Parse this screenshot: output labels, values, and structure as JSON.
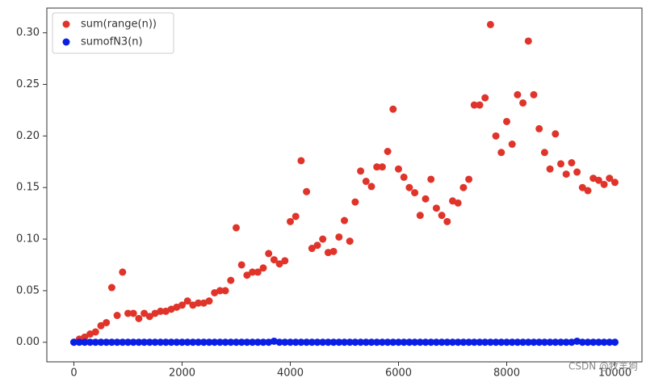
{
  "chart_data": {
    "type": "scatter",
    "x": [
      0,
      100,
      200,
      300,
      400,
      500,
      600,
      700,
      800,
      900,
      1000,
      1100,
      1200,
      1300,
      1400,
      1500,
      1600,
      1700,
      1800,
      1900,
      2000,
      2100,
      2200,
      2300,
      2400,
      2500,
      2600,
      2700,
      2800,
      2900,
      3000,
      3100,
      3200,
      3300,
      3400,
      3500,
      3600,
      3700,
      3800,
      3900,
      4000,
      4100,
      4200,
      4300,
      4400,
      4500,
      4600,
      4700,
      4800,
      4900,
      5000,
      5100,
      5200,
      5300,
      5400,
      5500,
      5600,
      5700,
      5800,
      5900,
      6000,
      6100,
      6200,
      6300,
      6400,
      6500,
      6600,
      6700,
      6800,
      6900,
      7000,
      7100,
      7200,
      7300,
      7400,
      7500,
      7600,
      7700,
      7800,
      7900,
      8000,
      8100,
      8200,
      8300,
      8400,
      8500,
      8600,
      8700,
      8800,
      8900,
      9000,
      9100,
      9200,
      9300,
      9400,
      9500,
      9600,
      9700,
      9800,
      9900,
      10000
    ],
    "series": [
      {
        "name": "sum(range(n))",
        "color": "#e0342a",
        "values": [
          0.0,
          0.003,
          0.005,
          0.008,
          0.01,
          0.016,
          0.019,
          0.053,
          0.026,
          0.068,
          0.028,
          0.028,
          0.023,
          0.028,
          0.025,
          0.028,
          0.03,
          0.03,
          0.032,
          0.034,
          0.036,
          0.04,
          0.036,
          0.038,
          0.038,
          0.04,
          0.048,
          0.05,
          0.05,
          0.06,
          0.111,
          0.075,
          0.065,
          0.068,
          0.068,
          0.072,
          0.086,
          0.08,
          0.076,
          0.079,
          0.117,
          0.122,
          0.176,
          0.146,
          0.091,
          0.094,
          0.1,
          0.087,
          0.088,
          0.102,
          0.118,
          0.098,
          0.136,
          0.166,
          0.156,
          0.151,
          0.17,
          0.17,
          0.185,
          0.226,
          0.168,
          0.16,
          0.15,
          0.145,
          0.123,
          0.139,
          0.158,
          0.13,
          0.123,
          0.117,
          0.137,
          0.135,
          0.15,
          0.158,
          0.23,
          0.23,
          0.237,
          0.308,
          0.2,
          0.184,
          0.214,
          0.192,
          0.24,
          0.232,
          0.292,
          0.24,
          0.207,
          0.184,
          0.168,
          0.202,
          0.173,
          0.163,
          0.174,
          0.165,
          0.15,
          0.147,
          0.159,
          0.157,
          0.153,
          0.159,
          0.155
        ]
      },
      {
        "name": "sumofN3(n)",
        "color": "#0a1fe6",
        "values": [
          0,
          0,
          0,
          0,
          0,
          0,
          0,
          0,
          0,
          0,
          0,
          0,
          0,
          0,
          0,
          0,
          0,
          0,
          0,
          0,
          0,
          0,
          0,
          0,
          0,
          0,
          0,
          0,
          0,
          0,
          0,
          0,
          0,
          0,
          0,
          0,
          0,
          0.001,
          0,
          0,
          0,
          0,
          0,
          0,
          0,
          0,
          0,
          0,
          0,
          0,
          0,
          0,
          0,
          0,
          0,
          0,
          0,
          0,
          0,
          0,
          0,
          0,
          0,
          0,
          0,
          0,
          0,
          0,
          0,
          0,
          0,
          0,
          0,
          0,
          0,
          0,
          0,
          0,
          0,
          0,
          0,
          0,
          0,
          0,
          0,
          0,
          0,
          0,
          0,
          0,
          0,
          0,
          0,
          0.001,
          0,
          0,
          0,
          0,
          0,
          0,
          0
        ]
      }
    ],
    "xlim": [
      -500,
      10500
    ],
    "ylim": [
      -0.019,
      0.324
    ],
    "xticks": [
      0,
      2000,
      4000,
      6000,
      8000,
      10000
    ],
    "yticks": [
      {
        "value": 0,
        "label": "0.00"
      },
      {
        "value": 0.05,
        "label": "0.05"
      },
      {
        "value": 0.1,
        "label": "0.10"
      },
      {
        "value": 0.15,
        "label": "0.15"
      },
      {
        "value": 0.2,
        "label": "0.20"
      },
      {
        "value": 0.25,
        "label": "0.25"
      },
      {
        "value": 0.3,
        "label": "0.30"
      }
    ],
    "legend": "upper-left",
    "grid": false,
    "watermark": "CSDN @牧羊狗"
  }
}
